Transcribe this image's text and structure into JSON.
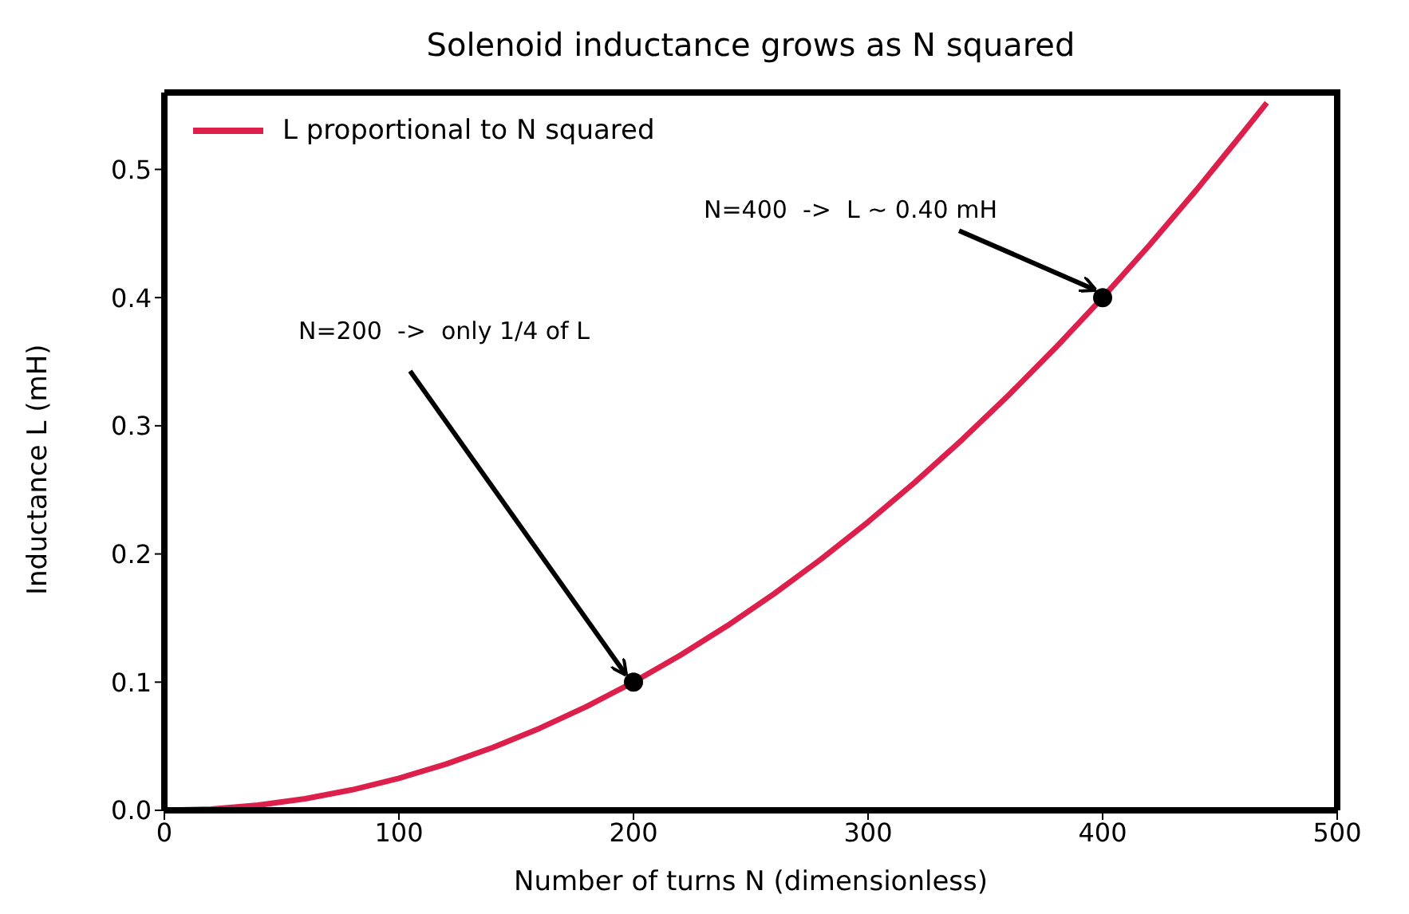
{
  "chart_data": {
    "type": "line",
    "title": "Solenoid inductance grows as N squared",
    "xlabel": "Number of turns  N  (dimensionless)",
    "ylabel": "Inductance  L  (mH)",
    "series": [
      {
        "name": "L proportional to N squared",
        "color": "#dc1f4b",
        "marker": "none",
        "line_style": "solid",
        "x": [
          0,
          20,
          40,
          60,
          80,
          100,
          120,
          140,
          160,
          180,
          200,
          220,
          240,
          260,
          280,
          300,
          320,
          340,
          360,
          380,
          400,
          420,
          440,
          460,
          470
        ],
        "values": [
          0,
          0.001,
          0.004,
          0.009,
          0.016,
          0.025,
          0.036,
          0.049,
          0.064,
          0.081,
          0.1,
          0.121,
          0.144,
          0.169,
          0.196,
          0.225,
          0.256,
          0.289,
          0.324,
          0.361,
          0.4,
          0.441,
          0.484,
          0.529,
          0.552
        ]
      },
      {
        "type": "scatter",
        "color": "#000000",
        "marker": "circle",
        "x": [
          200,
          400
        ],
        "values": [
          0.1,
          0.4
        ]
      }
    ],
    "annotations": [
      {
        "text": "N=200  ->  only 1/4 of L",
        "x": 200,
        "y": 0.1
      },
      {
        "text": "N=400  ->  L ~ 0.40 mH",
        "x": 400,
        "y": 0.4
      }
    ],
    "xlim": [
      0,
      500
    ],
    "ylim": [
      0,
      0.56
    ],
    "xticks": [
      0,
      100,
      200,
      300,
      400,
      500
    ],
    "yticks": [
      {
        "value": 0,
        "label": "0.0"
      },
      0.1,
      0.2,
      0.3,
      0.4,
      0.5
    ],
    "grid": false,
    "legend": "top left"
  }
}
